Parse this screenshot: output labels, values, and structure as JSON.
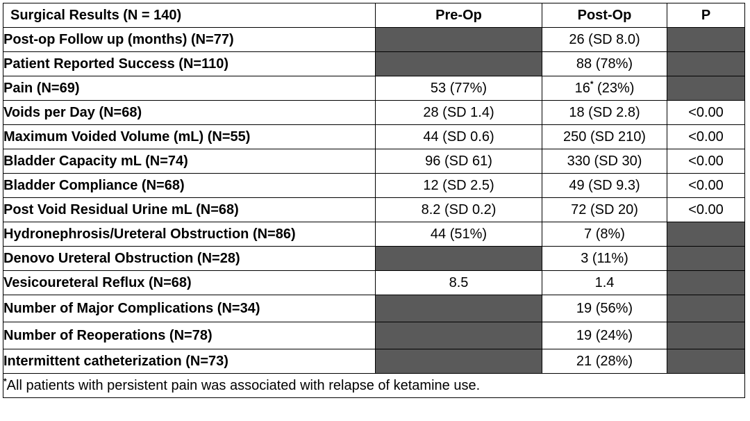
{
  "table": {
    "header": {
      "label": "Surgical Results  (N = 140)",
      "preop": "Pre-Op",
      "postop": "Post-Op",
      "p": "P"
    },
    "rows": [
      {
        "label": "Post-op Follow up (months) (N=77)",
        "pre": null,
        "post": "26 (SD 8.0)",
        "p": null
      },
      {
        "label": "Patient Reported Success (N=110)",
        "pre": null,
        "post": "88 (78%)",
        "p": null
      },
      {
        "label": "Pain (N=69)",
        "pre": "53 (77%)",
        "post_main": "16",
        "post_mark": "*",
        "post_rest": " (23%)",
        "p": null
      },
      {
        "label": "Voids per Day (N=68)",
        "pre": "28 (SD 1.4)",
        "post": "18 (SD 2.8)",
        "p": "<0.00"
      },
      {
        "label": "Maximum Voided Volume (mL) (N=55)",
        "pre": "44 (SD 0.6)",
        "post": "250 (SD 210)",
        "p": "<0.00"
      },
      {
        "label": "Bladder Capacity mL (N=74)",
        "pre": "96 (SD 61)",
        "post": "330 (SD 30)",
        "p": "<0.00"
      },
      {
        "label": "Bladder Compliance (N=68)",
        "pre": "12 (SD 2.5)",
        "post": "49 (SD 9.3)",
        "p": "<0.00"
      },
      {
        "label": "Post Void Residual Urine mL (N=68)",
        "pre": "8.2 (SD 0.2)",
        "post": "72 (SD 20)",
        "p": "<0.00"
      },
      {
        "label": "Hydronephrosis/Ureteral Obstruction (N=86)",
        "pre": "44 (51%)",
        "post": "7 (8%)",
        "p": null
      },
      {
        "label": "Denovo Ureteral Obstruction (N=28)",
        "pre": null,
        "post": "3 (11%)",
        "p": null
      },
      {
        "label": "Vesicoureteral Reflux (N=68)",
        "pre": "8.5",
        "post": "1.4",
        "p": null
      },
      {
        "label": "Number of Major Complications (N=34)",
        "pre": null,
        "post": "19 (56%)",
        "p": null
      },
      {
        "label": "Number of Reoperations (N=78)",
        "pre": null,
        "post": "19 (24%)",
        "p": null
      },
      {
        "label": "Intermittent catheterization (N=73)",
        "pre": null,
        "post": "21 (28%)",
        "p": null
      }
    ],
    "footnote_mark": "*",
    "footnote": "All patients with persistent pain was associated with relapse of ketamine use."
  },
  "colors": {
    "shaded_cell": "#5a5a5a",
    "border": "#000000",
    "background": "#ffffff"
  }
}
